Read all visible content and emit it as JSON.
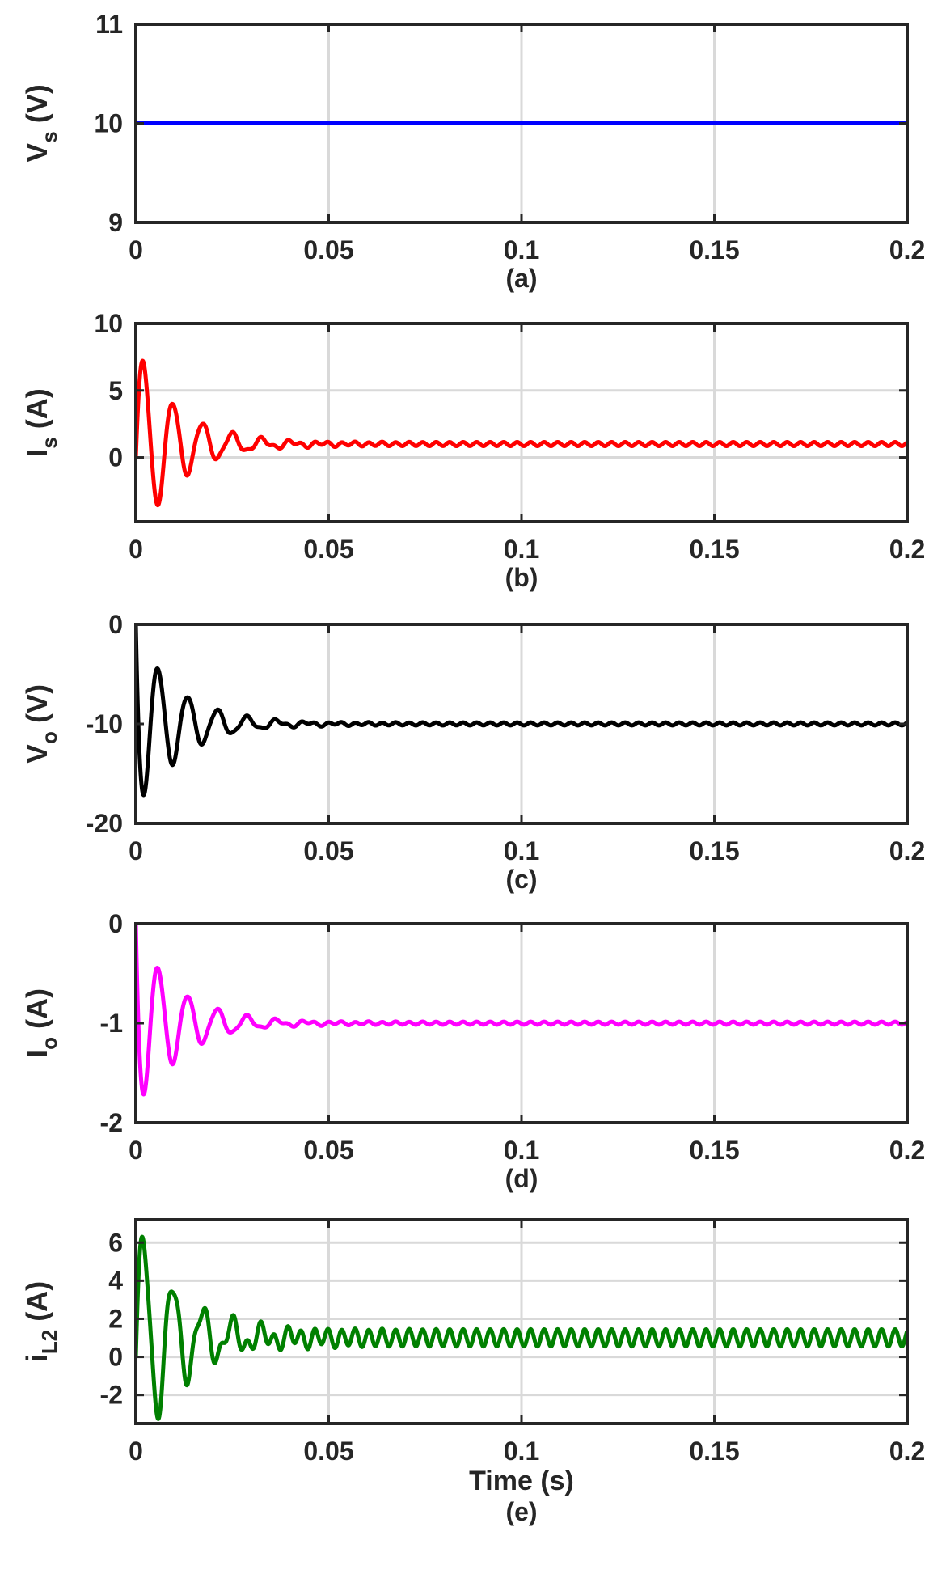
{
  "chart_data": [
    {
      "type": "line",
      "panel_label": "(a)",
      "ylabel": "V",
      "ylabel_sub": "s",
      "ylabel_unit": " (V)",
      "xlim": [
        0,
        0.2
      ],
      "ylim": [
        9,
        11
      ],
      "xticks": [
        "0",
        "0.05",
        "0.1",
        "0.15",
        "0.2"
      ],
      "yticks": [
        {
          "v": 9,
          "t": "9"
        },
        {
          "v": 10,
          "t": "10"
        },
        {
          "v": 11,
          "t": "11"
        }
      ],
      "grid": {
        "x": true,
        "y": false
      },
      "series": [
        {
          "color": "#0000ff",
          "signal": {
            "final": 10,
            "start": 10,
            "amp": 0,
            "decay": 0.01,
            "period": 0.0077,
            "phase": 0,
            "ripple": 0,
            "ripple_period": 0.004
          }
        }
      ]
    },
    {
      "type": "line",
      "panel_label": "(b)",
      "ylabel": "I",
      "ylabel_sub": "s",
      "ylabel_unit": " (A)",
      "xlim": [
        0,
        0.2
      ],
      "ylim": [
        -4.8,
        10
      ],
      "xticks": [
        "0",
        "0.05",
        "0.1",
        "0.15",
        "0.2"
      ],
      "yticks": [
        {
          "v": 0,
          "t": "0"
        },
        {
          "v": 5,
          "t": "5"
        },
        {
          "v": 10,
          "t": "10"
        }
      ],
      "grid": {
        "x": true,
        "y": true
      },
      "series": [
        {
          "color": "#ff0000",
          "signal": {
            "final": 1,
            "start": 0,
            "amp": 7.5,
            "decay": 0.011,
            "period": 0.0077,
            "phase": 0,
            "ripple": 0.15,
            "ripple_period": 0.0035
          }
        }
      ]
    },
    {
      "type": "line",
      "panel_label": "(c)",
      "ylabel": "V",
      "ylabel_sub": "o",
      "ylabel_unit": " (V)",
      "xlim": [
        0,
        0.2
      ],
      "ylim": [
        -20,
        0
      ],
      "xticks": [
        "0",
        "0.05",
        "0.1",
        "0.15",
        "0.2"
      ],
      "yticks": [
        {
          "v": -20,
          "t": "-20"
        },
        {
          "v": -10,
          "t": "-10"
        },
        {
          "v": 0,
          "t": "0"
        }
      ],
      "grid": {
        "x": true,
        "y": false
      },
      "series": [
        {
          "color": "#000000",
          "signal": {
            "final": -10,
            "start": 0,
            "amp": -9.5,
            "decay": 0.011,
            "period": 0.0077,
            "phase": 0,
            "ripple": 0.15,
            "ripple_period": 0.0035
          }
        }
      ]
    },
    {
      "type": "line",
      "panel_label": "(d)",
      "ylabel": "I",
      "ylabel_sub": "o",
      "ylabel_unit": " (A)",
      "xlim": [
        0,
        0.2
      ],
      "ylim": [
        -2,
        0
      ],
      "xticks": [
        "0",
        "0.05",
        "0.1",
        "0.15",
        "0.2"
      ],
      "yticks": [
        {
          "v": -2,
          "t": "-2"
        },
        {
          "v": -1,
          "t": "-1"
        },
        {
          "v": 0,
          "t": "0"
        }
      ],
      "grid": {
        "x": true,
        "y": false
      },
      "series": [
        {
          "color": "#ff00ff",
          "signal": {
            "final": -1,
            "start": 0,
            "amp": -0.95,
            "decay": 0.011,
            "period": 0.0077,
            "phase": 0,
            "ripple": 0.015,
            "ripple_period": 0.0035
          }
        }
      ]
    },
    {
      "type": "line",
      "panel_label": "(e)",
      "xlabel": "Time (s)",
      "ylabel": "i",
      "ylabel_sub": "L2",
      "ylabel_unit": " (A)",
      "xlim": [
        0,
        0.2
      ],
      "ylim": [
        -3.5,
        7.2
      ],
      "xticks": [
        "0",
        "0.05",
        "0.1",
        "0.15",
        "0.2"
      ],
      "yticks": [
        {
          "v": -2,
          "t": "-2"
        },
        {
          "v": 0,
          "t": "0"
        },
        {
          "v": 2,
          "t": "2"
        },
        {
          "v": 4,
          "t": "4"
        },
        {
          "v": 6,
          "t": "6"
        }
      ],
      "grid": {
        "x": true,
        "y": true
      },
      "series": [
        {
          "color": "#008000",
          "signal": {
            "final": 1,
            "start": 0,
            "amp": 6.3,
            "decay": 0.012,
            "period": 0.0077,
            "phase": 0,
            "ripple": 0.45,
            "ripple_period": 0.0035
          }
        }
      ]
    }
  ]
}
